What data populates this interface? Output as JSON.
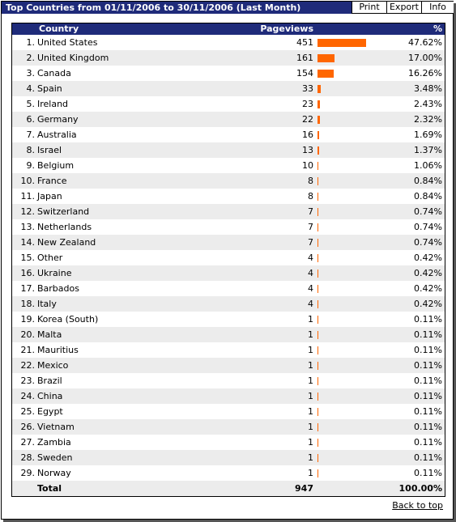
{
  "header": {
    "title": "Top Countries from 01/11/2006 to 30/11/2006 (Last Month)",
    "buttons": [
      "Print",
      "Export",
      "Info"
    ]
  },
  "table": {
    "columns": {
      "country": "Country",
      "pageviews": "Pageviews",
      "percent": "%"
    },
    "rows": [
      {
        "rank": "1.",
        "country": "United States",
        "pageviews": 451,
        "percent": "47.62%"
      },
      {
        "rank": "2.",
        "country": "United Kingdom",
        "pageviews": 161,
        "percent": "17.00%"
      },
      {
        "rank": "3.",
        "country": "Canada",
        "pageviews": 154,
        "percent": "16.26%"
      },
      {
        "rank": "4.",
        "country": "Spain",
        "pageviews": 33,
        "percent": "3.48%"
      },
      {
        "rank": "5.",
        "country": "Ireland",
        "pageviews": 23,
        "percent": "2.43%"
      },
      {
        "rank": "6.",
        "country": "Germany",
        "pageviews": 22,
        "percent": "2.32%"
      },
      {
        "rank": "7.",
        "country": "Australia",
        "pageviews": 16,
        "percent": "1.69%"
      },
      {
        "rank": "8.",
        "country": "Israel",
        "pageviews": 13,
        "percent": "1.37%"
      },
      {
        "rank": "9.",
        "country": "Belgium",
        "pageviews": 10,
        "percent": "1.06%"
      },
      {
        "rank": "10.",
        "country": "France",
        "pageviews": 8,
        "percent": "0.84%"
      },
      {
        "rank": "11.",
        "country": "Japan",
        "pageviews": 8,
        "percent": "0.84%"
      },
      {
        "rank": "12.",
        "country": "Switzerland",
        "pageviews": 7,
        "percent": "0.74%"
      },
      {
        "rank": "13.",
        "country": "Netherlands",
        "pageviews": 7,
        "percent": "0.74%"
      },
      {
        "rank": "14.",
        "country": "New Zealand",
        "pageviews": 7,
        "percent": "0.74%"
      },
      {
        "rank": "15.",
        "country": "Other",
        "pageviews": 4,
        "percent": "0.42%"
      },
      {
        "rank": "16.",
        "country": "Ukraine",
        "pageviews": 4,
        "percent": "0.42%"
      },
      {
        "rank": "17.",
        "country": "Barbados",
        "pageviews": 4,
        "percent": "0.42%"
      },
      {
        "rank": "18.",
        "country": "Italy",
        "pageviews": 4,
        "percent": "0.42%"
      },
      {
        "rank": "19.",
        "country": "Korea (South)",
        "pageviews": 1,
        "percent": "0.11%"
      },
      {
        "rank": "20.",
        "country": "Malta",
        "pageviews": 1,
        "percent": "0.11%"
      },
      {
        "rank": "21.",
        "country": "Mauritius",
        "pageviews": 1,
        "percent": "0.11%"
      },
      {
        "rank": "22.",
        "country": "Mexico",
        "pageviews": 1,
        "percent": "0.11%"
      },
      {
        "rank": "23.",
        "country": "Brazil",
        "pageviews": 1,
        "percent": "0.11%"
      },
      {
        "rank": "24.",
        "country": "China",
        "pageviews": 1,
        "percent": "0.11%"
      },
      {
        "rank": "25.",
        "country": "Egypt",
        "pageviews": 1,
        "percent": "0.11%"
      },
      {
        "rank": "26.",
        "country": "Vietnam",
        "pageviews": 1,
        "percent": "0.11%"
      },
      {
        "rank": "27.",
        "country": "Zambia",
        "pageviews": 1,
        "percent": "0.11%"
      },
      {
        "rank": "28.",
        "country": "Sweden",
        "pageviews": 1,
        "percent": "0.11%"
      },
      {
        "rank": "29.",
        "country": "Norway",
        "pageviews": 1,
        "percent": "0.11%"
      }
    ],
    "total": {
      "label": "Total",
      "pageviews": "947",
      "percent": "100.00%"
    }
  },
  "colors": {
    "header_bg": "#1f2b7a",
    "bar": "#ff6600",
    "row_alt": "#ececec"
  },
  "footer": {
    "back_link": "Back to top"
  }
}
